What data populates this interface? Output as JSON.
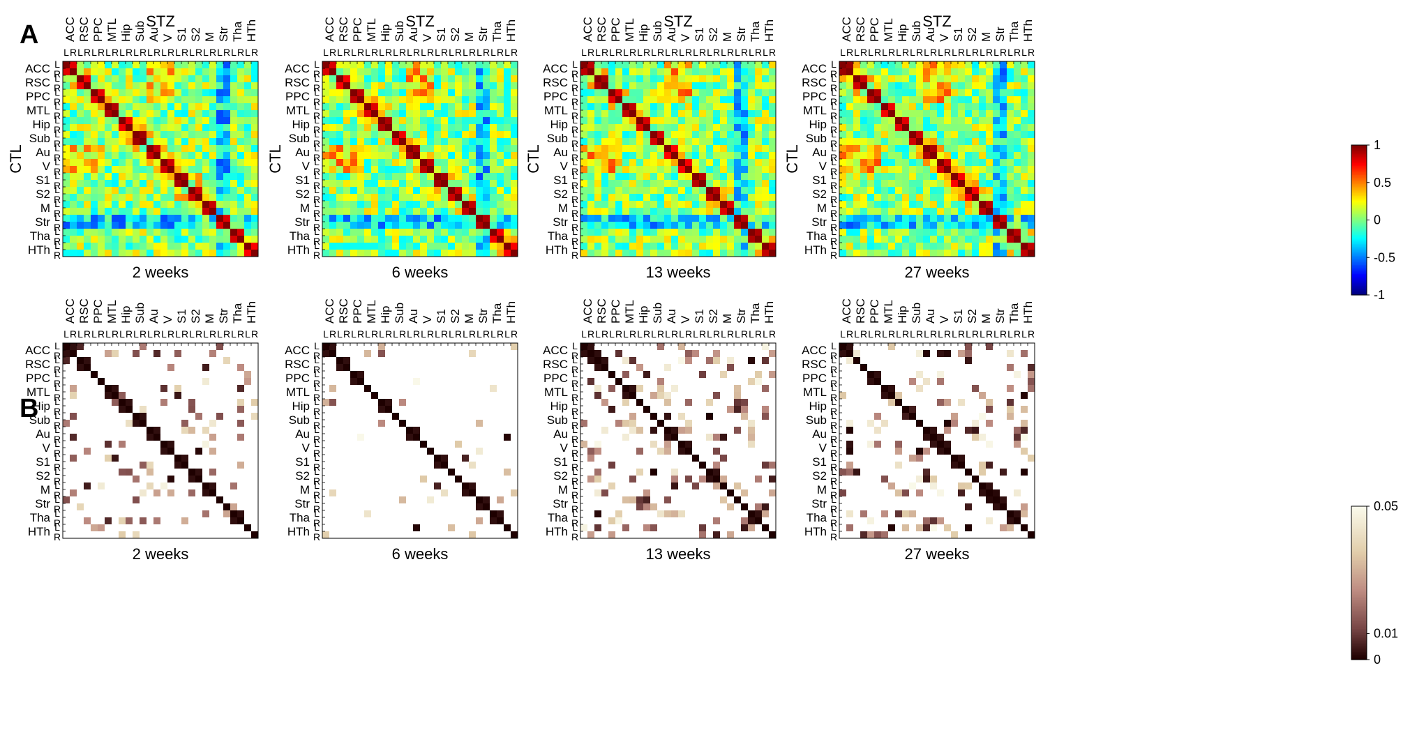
{
  "figure": {
    "panel_a_label": "A",
    "panel_b_label": "B",
    "colorbar_a_ticks": [
      "1",
      "0.5",
      "0",
      "-0.5",
      "-1"
    ],
    "colorbar_b_ticks": [
      "0.05",
      "0.01",
      "0"
    ]
  },
  "chart_data": [
    {
      "type": "heatmap",
      "panel": "A",
      "title": "STZ",
      "ylabel": "CTL",
      "caption": "2 weeks",
      "colormap": "jet",
      "zlim": [
        -1,
        1
      ],
      "regions": [
        "ACC",
        "RSC",
        "PPC",
        "MTL",
        "Hip",
        "Sub",
        "Au",
        "V",
        "S1",
        "S2",
        "M",
        "Str",
        "Tha",
        "HTh"
      ],
      "hemispheres": [
        "L",
        "R"
      ],
      "seed": 11
    },
    {
      "type": "heatmap",
      "panel": "A",
      "title": "STZ",
      "ylabel": "CTL",
      "caption": "6 weeks",
      "colormap": "jet",
      "zlim": [
        -1,
        1
      ],
      "regions": [
        "ACC",
        "RSC",
        "PPC",
        "MTL",
        "Hip",
        "Sub",
        "Au",
        "V",
        "S1",
        "S2",
        "M",
        "Str",
        "Tha",
        "HTh"
      ],
      "hemispheres": [
        "L",
        "R"
      ],
      "seed": 23
    },
    {
      "type": "heatmap",
      "panel": "A",
      "title": "STZ",
      "ylabel": "CTL",
      "caption": "13 weeks",
      "colormap": "jet",
      "zlim": [
        -1,
        1
      ],
      "regions": [
        "ACC",
        "RSC",
        "PPC",
        "MTL",
        "Hip",
        "Sub",
        "Au",
        "V",
        "S1",
        "S2",
        "M",
        "Str",
        "Tha",
        "HTh"
      ],
      "hemispheres": [
        "L",
        "R"
      ],
      "seed": 37
    },
    {
      "type": "heatmap",
      "panel": "A",
      "title": "STZ",
      "ylabel": "CTL",
      "caption": "27 weeks",
      "colormap": "jet",
      "zlim": [
        -1,
        1
      ],
      "regions": [
        "ACC",
        "RSC",
        "PPC",
        "MTL",
        "Hip",
        "Sub",
        "Au",
        "V",
        "S1",
        "S2",
        "M",
        "Str",
        "Tha",
        "HTh"
      ],
      "hemispheres": [
        "L",
        "R"
      ],
      "seed": 41
    },
    {
      "type": "heatmap",
      "panel": "B",
      "caption": "2 weeks",
      "colormap": "pink",
      "zlim": [
        0,
        0.05
      ],
      "regions": [
        "ACC",
        "RSC",
        "PPC",
        "MTL",
        "Hip",
        "Sub",
        "Au",
        "V",
        "S1",
        "S2",
        "M",
        "Str",
        "Tha",
        "HTh"
      ],
      "hemispheres": [
        "L",
        "R"
      ],
      "density": 0.1,
      "seed": 53
    },
    {
      "type": "heatmap",
      "panel": "B",
      "caption": "6 weeks",
      "colormap": "pink",
      "zlim": [
        0,
        0.05
      ],
      "regions": [
        "ACC",
        "RSC",
        "PPC",
        "MTL",
        "Hip",
        "Sub",
        "Au",
        "V",
        "S1",
        "S2",
        "M",
        "Str",
        "Tha",
        "HTh"
      ],
      "hemispheres": [
        "L",
        "R"
      ],
      "density": 0.03,
      "seed": 67
    },
    {
      "type": "heatmap",
      "panel": "B",
      "caption": "13 weeks",
      "colormap": "pink",
      "zlim": [
        0,
        0.05
      ],
      "regions": [
        "ACC",
        "RSC",
        "PPC",
        "MTL",
        "Hip",
        "Sub",
        "Au",
        "V",
        "S1",
        "S2",
        "M",
        "Str",
        "Tha",
        "HTh"
      ],
      "hemispheres": [
        "L",
        "R"
      ],
      "density": 0.22,
      "seed": 71
    },
    {
      "type": "heatmap",
      "panel": "B",
      "caption": "27 weeks",
      "colormap": "pink",
      "zlim": [
        0,
        0.05
      ],
      "regions": [
        "ACC",
        "RSC",
        "PPC",
        "MTL",
        "Hip",
        "Sub",
        "Au",
        "V",
        "S1",
        "S2",
        "M",
        "Str",
        "Tha",
        "HTh"
      ],
      "hemispheres": [
        "L",
        "R"
      ],
      "density": 0.18,
      "seed": 83
    }
  ]
}
